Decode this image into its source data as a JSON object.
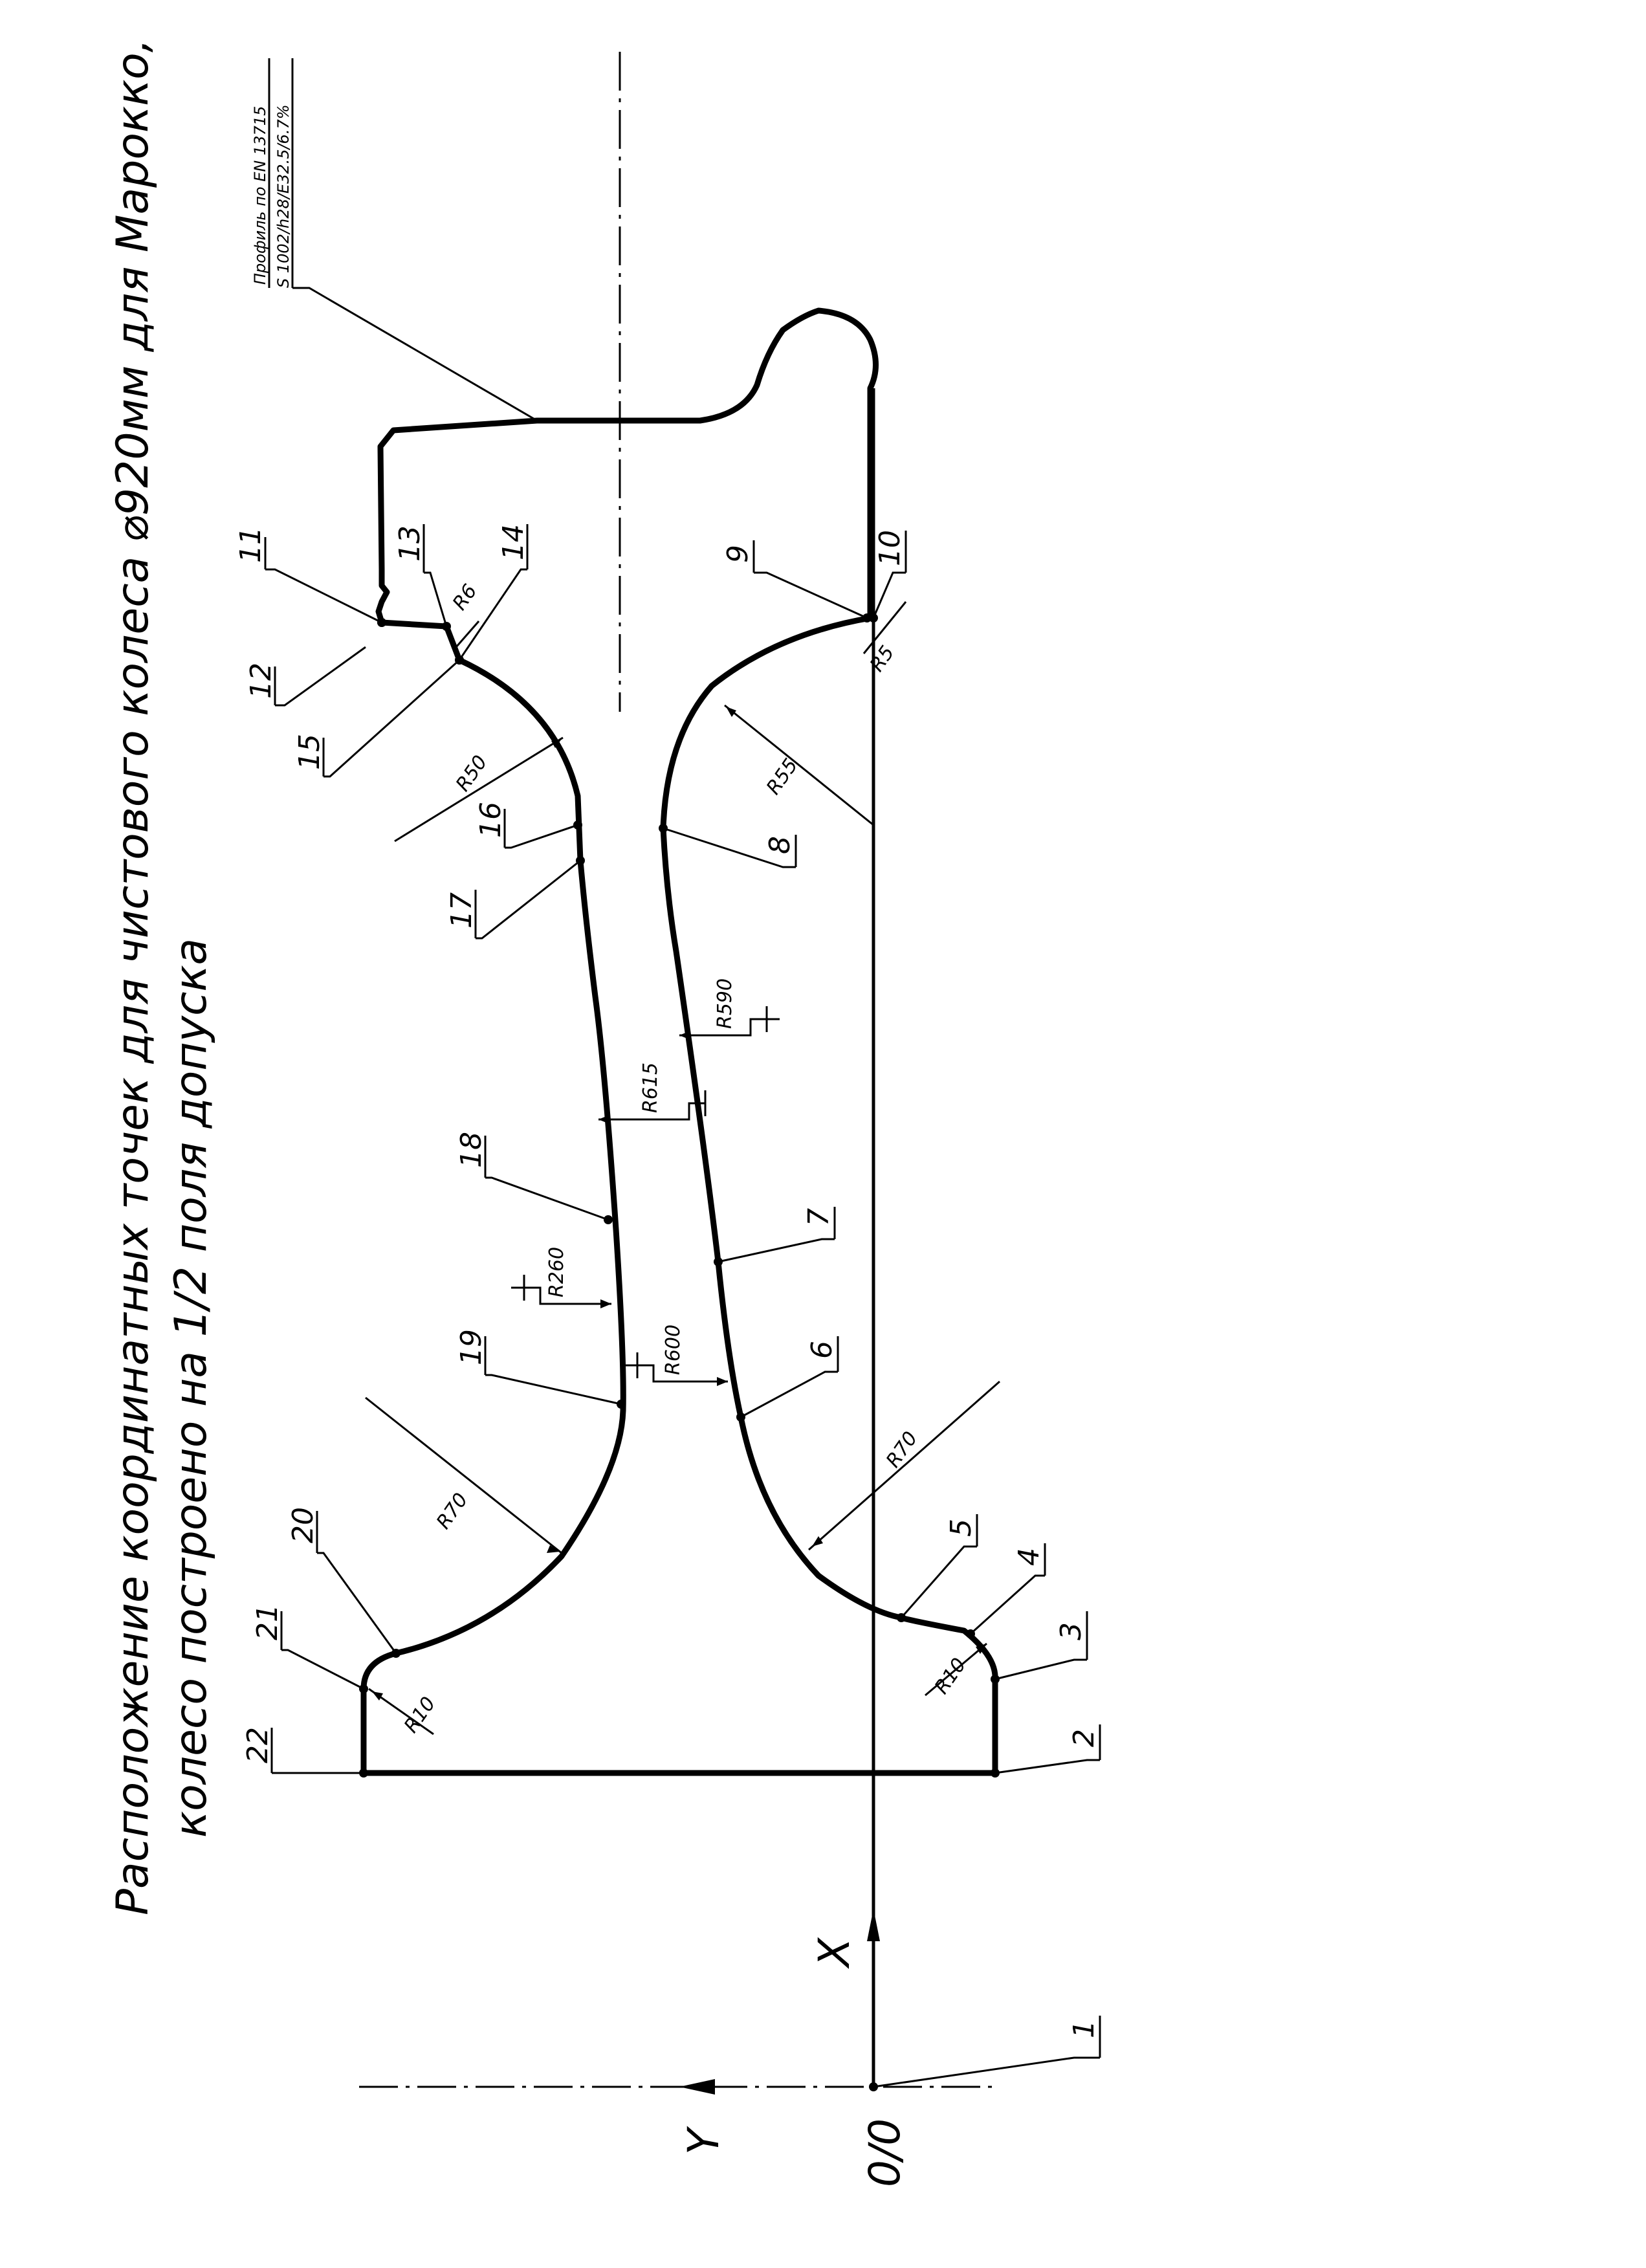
{
  "title": {
    "line1": "Расположение координатных точек для чистового колеса ⌀920мм для Марокко,",
    "line2": "колесо построено на 1/2 поля допуска"
  },
  "profile_note": {
    "line1": "Профиль по EN 13715",
    "line2": "S 1002/h28/E32.5/6.7%"
  },
  "axes": {
    "x_label": "X",
    "y_label": "Y",
    "origin_label": "0/0"
  },
  "points": [
    "1",
    "2",
    "3",
    "4",
    "5",
    "6",
    "7",
    "8",
    "9",
    "10",
    "11",
    "12",
    "13",
    "14",
    "15",
    "16",
    "17",
    "18",
    "19",
    "20",
    "21",
    "22"
  ],
  "radii": {
    "r10_right": "R10",
    "r10_left": "R10",
    "r70_right": "R70",
    "r70_left": "R70",
    "r600": "R600",
    "r260": "R260",
    "r615": "R615",
    "r590": "R590",
    "r55": "R55",
    "r50": "R50",
    "r6": "R6",
    "r5": "R5"
  },
  "colors": {
    "ink": "#000000",
    "paper": "#ffffff"
  }
}
